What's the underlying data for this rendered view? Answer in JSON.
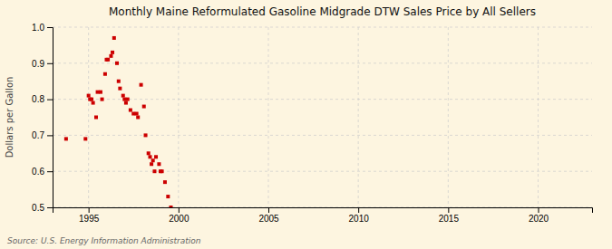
{
  "chart_data": {
    "type": "scatter",
    "title": "Monthly Maine Reformulated Gasoline Midgrade DTW Sales Price by All Sellers",
    "ylabel": "Dollars per Gallon",
    "annotations": [
      "Source: U.S. Energy Information Administration"
    ],
    "color": "#cc0000",
    "marker": "square",
    "grid": true,
    "xlim": [
      1993.0,
      2023.0
    ],
    "ylim": [
      0.5,
      1.0
    ],
    "xticks": [
      1995,
      2000,
      2005,
      2010,
      2015,
      2020
    ],
    "yticks": [
      0.5,
      0.6,
      0.7,
      0.8,
      0.9,
      {
        "value": 1.0,
        "label": "1.0"
      }
    ],
    "x": [
      1993.75,
      1994.83,
      1995.0,
      1995.08,
      1995.17,
      1995.25,
      1995.42,
      1995.5,
      1995.67,
      1995.75,
      1995.92,
      1996.0,
      1996.08,
      1996.25,
      1996.33,
      1996.42,
      1996.58,
      1996.67,
      1996.75,
      1996.92,
      1997.0,
      1997.08,
      1997.17,
      1997.33,
      1997.5,
      1997.67,
      1997.75,
      1997.92,
      1998.08,
      1998.17,
      1998.33,
      1998.42,
      1998.5,
      1998.58,
      1998.67,
      1998.75,
      1998.92,
      1999.0,
      1999.08,
      1999.25,
      1999.42,
      1999.58
    ],
    "y": [
      0.69,
      0.69,
      0.81,
      0.8,
      0.8,
      0.79,
      0.75,
      0.82,
      0.82,
      0.8,
      0.87,
      0.91,
      0.91,
      0.92,
      0.93,
      0.97,
      0.9,
      0.85,
      0.83,
      0.81,
      0.8,
      0.79,
      0.8,
      0.77,
      0.76,
      0.76,
      0.75,
      0.84,
      0.78,
      0.7,
      0.65,
      0.64,
      0.62,
      0.63,
      0.6,
      0.64,
      0.62,
      0.6,
      0.6,
      0.57,
      0.53,
      0.5
    ]
  }
}
